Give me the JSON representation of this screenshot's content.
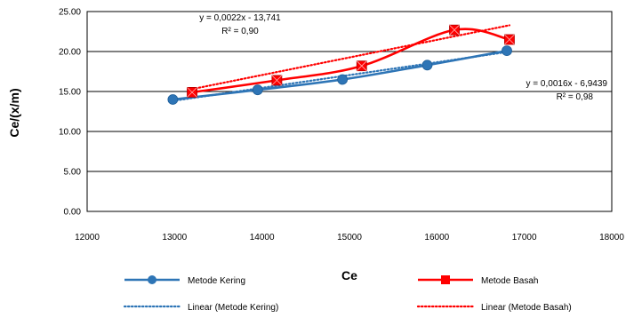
{
  "chart_data": {
    "type": "line",
    "xlabel": "Ce",
    "ylabel": "Ce/(x/m)",
    "xlim": [
      12000,
      18000
    ],
    "ylim": [
      0,
      25
    ],
    "xticks": [
      "12000",
      "13000",
      "14000",
      "15000",
      "16000",
      "17000",
      "18000"
    ],
    "yticks": [
      "0.00",
      "5.00",
      "10.00",
      "15.00",
      "20.00",
      "25.00"
    ],
    "grid": "horizontal",
    "legend_position": "bottom",
    "series": [
      {
        "name": "Metode Kering",
        "color": "#2E75B6",
        "marker": "circle",
        "smooth": true,
        "points": [
          [
            12980,
            14.0
          ],
          [
            13950,
            15.2
          ],
          [
            14920,
            16.5
          ],
          [
            15890,
            18.3
          ],
          [
            16800,
            20.1
          ]
        ]
      },
      {
        "name": "Metode Basah",
        "color": "#FF0000",
        "marker": "square",
        "smooth": true,
        "points": [
          [
            13200,
            14.9
          ],
          [
            14170,
            16.4
          ],
          [
            15140,
            18.2
          ],
          [
            16200,
            22.7
          ],
          [
            16830,
            21.5
          ]
        ]
      }
    ],
    "trendlines": [
      {
        "name": "Linear (Metode Kering)",
        "color": "#2E75B6",
        "style": "dotted",
        "slope": 0.0016,
        "intercept": -6.9439,
        "x_range": [
          12980,
          16800
        ],
        "equation": "y = 0,0016x - 6,9439",
        "r2": "R² = 0,98"
      },
      {
        "name": "Linear (Metode Basah)",
        "color": "#FF0000",
        "style": "dotted",
        "slope": 0.0022,
        "intercept": -13.741,
        "x_range": [
          13200,
          16830
        ],
        "equation": "y = 0,0022x - 13,741",
        "r2": "R² = 0,90"
      }
    ]
  }
}
